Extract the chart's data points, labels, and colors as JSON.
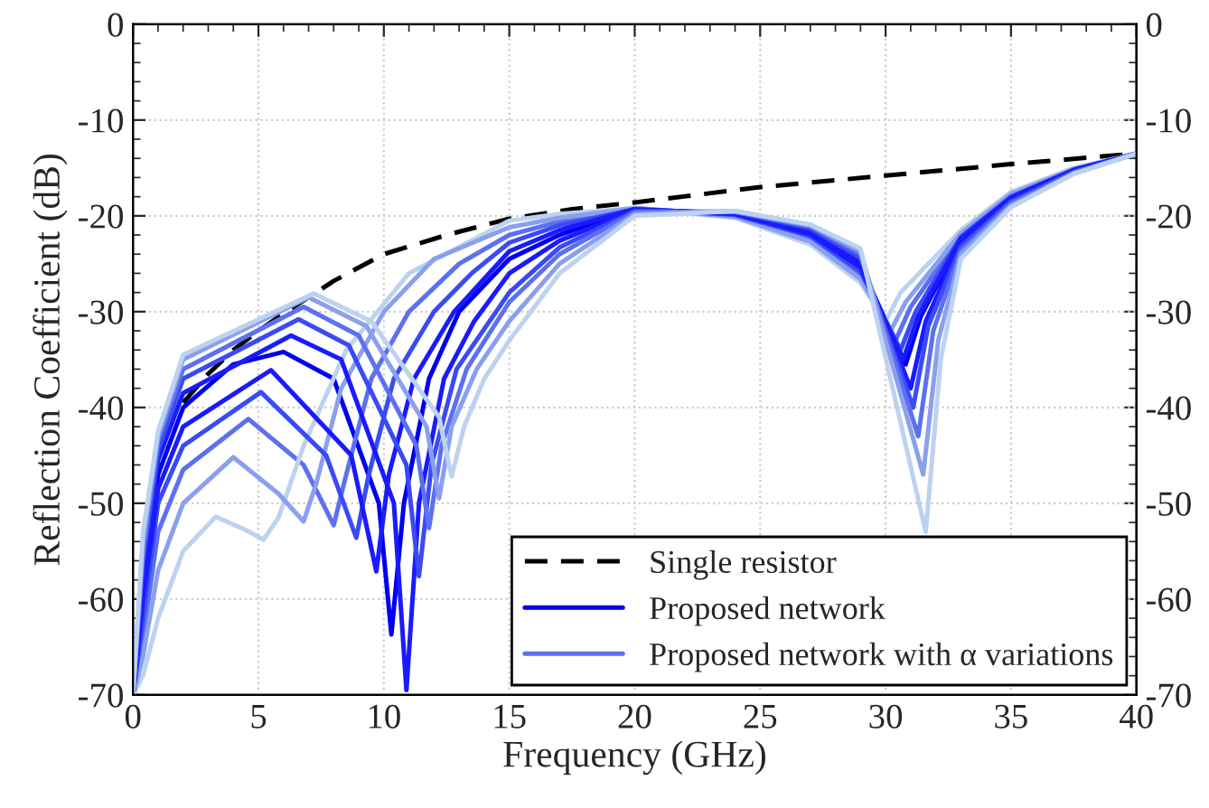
{
  "chart_data": {
    "type": "line",
    "xlabel": "Frequency (GHz)",
    "ylabel": "Reflection Coefficient (dB)",
    "xlim": [
      0,
      40
    ],
    "xticks": [
      0,
      5,
      10,
      15,
      20,
      25,
      30,
      35,
      40
    ],
    "ylim": [
      -70,
      0
    ],
    "yticks": [
      -70,
      -60,
      -50,
      -40,
      -30,
      -20,
      -10,
      0
    ],
    "y2lim": [
      -70,
      0
    ],
    "y2ticks": [
      -70,
      -60,
      -50,
      -40,
      -30,
      -20,
      -10,
      0
    ],
    "grid": true,
    "legend": "bottom right",
    "series": [
      {
        "name": "Single resistor",
        "color": "#000000",
        "line_style": "dashed",
        "x": [
          2,
          3,
          4,
          5,
          6,
          8,
          10,
          12.5,
          15,
          17.5,
          20,
          25,
          30,
          35,
          40
        ],
        "values": [
          -39.5,
          -36.5,
          -34,
          -32,
          -30.2,
          -26.8,
          -24,
          -22,
          -20.3,
          -19.3,
          -18.6,
          -17,
          -15.8,
          -14.6,
          -13.5
        ]
      },
      {
        "name": "Proposed network",
        "color": "#0000ee",
        "x": [
          0,
          0.4,
          1,
          2,
          4,
          6,
          8,
          9.8,
          10.3,
          10.8,
          11.8,
          13,
          15,
          17,
          20,
          24,
          27,
          29,
          30.8,
          31.4,
          33,
          35,
          37.5,
          40
        ],
        "values": [
          -70,
          -58,
          -47,
          -40,
          -35.5,
          -34.2,
          -37,
          -50,
          -63.7,
          -50,
          -37,
          -30,
          -24.5,
          -22,
          -19.3,
          -19.8,
          -21.7,
          -25.2,
          -35.5,
          -30.5,
          -22.5,
          -18.2,
          -15.3,
          -13.5
        ]
      },
      {
        "name": "Proposed network with α variations",
        "color": "#5c70f0",
        "x": [
          0,
          0.4,
          1,
          2,
          4.6,
          6.8,
          8.0,
          8.5,
          9.5,
          11,
          13,
          15,
          17,
          20,
          24,
          27,
          29,
          30.4,
          31.0,
          33,
          35,
          37.5,
          40
        ],
        "values": [
          -70,
          -64,
          -53,
          -46.5,
          -41.2,
          -46,
          -52.3,
          -47,
          -37,
          -30,
          -25,
          -22,
          -20.6,
          -19.2,
          -20,
          -22.4,
          -26.2,
          -33,
          -29.5,
          -22,
          -17.8,
          -15.1,
          -13.5
        ]
      },
      {
        "color": "#bdd2f0",
        "x": [
          0,
          0.4,
          1,
          2,
          3.3,
          4.5,
          5.2,
          5.8,
          6.8,
          8.5,
          11,
          15,
          17,
          20,
          24,
          27,
          29,
          30.0,
          30.6,
          33,
          35,
          37.5,
          40
        ],
        "values": [
          -70,
          -68,
          -62,
          -55,
          -51.4,
          -52.8,
          -53.8,
          -51.5,
          -44,
          -34,
          -26,
          -20.5,
          -19.8,
          -19.2,
          -20.2,
          -23,
          -27,
          -31,
          -28,
          -21.5,
          -17.5,
          -15,
          -13.5
        ]
      },
      {
        "color": "#8aa0ee",
        "x": [
          0,
          0.4,
          1,
          2,
          4.0,
          5.8,
          6.8,
          7.3,
          8.3,
          10,
          12,
          15,
          17,
          20,
          24,
          27,
          29,
          30.2,
          30.8,
          33,
          35,
          37.5,
          40
        ],
        "values": [
          -70,
          -66,
          -57,
          -50,
          -45.2,
          -49,
          -51.9,
          -48,
          -38,
          -30,
          -24.5,
          -21.2,
          -20.2,
          -19.2,
          -20.1,
          -22.7,
          -26.6,
          -32,
          -29,
          -21.8,
          -17.7,
          -15.1,
          -13.5
        ]
      },
      {
        "color": "#3a4af5",
        "x": [
          0,
          0.4,
          1,
          2,
          5.1,
          7.7,
          8.9,
          9.4,
          10.4,
          12,
          13.5,
          15,
          17,
          20,
          24,
          27,
          29,
          30.6,
          31.2,
          33,
          35,
          37.5,
          40
        ],
        "values": [
          -70,
          -62,
          -50,
          -44,
          -38.4,
          -45,
          -53.6,
          -47,
          -37,
          -30,
          -26,
          -22.8,
          -21,
          -19.3,
          -19.9,
          -22.1,
          -25.8,
          -34,
          -30,
          -22.2,
          -18,
          -15.2,
          -13.5
        ]
      },
      {
        "color": "#1a1aff",
        "x": [
          0,
          0.4,
          1,
          2,
          5.5,
          8.7,
          9.7,
          10.2,
          11.2,
          12.8,
          15,
          17,
          20,
          24,
          27,
          29,
          30.7,
          31.3,
          33,
          35,
          37.5,
          40
        ],
        "values": [
          -70,
          -60,
          -48.5,
          -42,
          -36.1,
          -45,
          -57.1,
          -47,
          -37,
          -30,
          -23.7,
          -21.5,
          -19.3,
          -19.8,
          -21.9,
          -25.4,
          -35,
          -30.5,
          -22.4,
          -18.1,
          -15.2,
          -13.5
        ]
      },
      {
        "color": "#1a1aff",
        "x": [
          0,
          0.4,
          1,
          2,
          6.3,
          8.3,
          10.4,
          10.9,
          11.4,
          12.4,
          13.6,
          15,
          17,
          20,
          24,
          27,
          29,
          31.0,
          31.6,
          33,
          35,
          37.5,
          40
        ],
        "values": [
          -70,
          -57,
          -45.5,
          -38.5,
          -32.5,
          -35,
          -50,
          -69.5,
          -50,
          -37,
          -31,
          -26,
          -22.6,
          -19.4,
          -19.7,
          -21.5,
          -24.8,
          -38,
          -31,
          -22.8,
          -18.3,
          -15.3,
          -13.5
        ]
      },
      {
        "color": "#3a4af5",
        "x": [
          0,
          0.4,
          1,
          2,
          6.6,
          8.6,
          10.9,
          11.4,
          11.9,
          12.9,
          15,
          17,
          20,
          24,
          27,
          29,
          31.1,
          31.7,
          33,
          35,
          37.5,
          40
        ],
        "values": [
          -70,
          -56,
          -44.5,
          -37,
          -30.8,
          -33.5,
          -46,
          -57.6,
          -46,
          -36,
          -28,
          -23.3,
          -19.5,
          -19.6,
          -21.3,
          -24.4,
          -40,
          -31.5,
          -23.2,
          -18.5,
          -15.4,
          -13.5
        ]
      },
      {
        "color": "#5c70f0",
        "x": [
          0,
          0.4,
          1,
          2,
          6.8,
          9,
          11.3,
          11.8,
          12.3,
          13.3,
          15,
          17,
          20,
          24,
          27,
          29,
          31.3,
          31.9,
          33,
          35,
          37.5,
          40
        ],
        "values": [
          -70,
          -55,
          -43.5,
          -36,
          -29.5,
          -32.5,
          -44,
          -52.6,
          -44,
          -36,
          -29,
          -24,
          -19.6,
          -19.6,
          -21.1,
          -24,
          -43,
          -32,
          -23.6,
          -18.7,
          -15.5,
          -13.5
        ]
      },
      {
        "color": "#8aa0ee",
        "x": [
          0,
          0.4,
          1,
          2,
          7,
          9.3,
          11.7,
          12.2,
          12.7,
          13.7,
          15,
          17,
          20,
          24,
          27,
          29,
          31.5,
          32.1,
          33,
          35,
          37.5,
          40
        ],
        "values": [
          -70,
          -54,
          -43,
          -35,
          -28.5,
          -31.5,
          -42,
          -49.5,
          -42,
          -36,
          -31,
          -25,
          -19.8,
          -19.5,
          -21,
          -23.7,
          -47,
          -33,
          -24,
          -18.9,
          -15.6,
          -13.5
        ]
      },
      {
        "color": "#bdd2f0",
        "x": [
          0,
          0.4,
          1,
          2,
          7.2,
          9.5,
          12.2,
          12.7,
          13.2,
          14,
          15,
          17,
          20,
          24,
          27,
          29,
          31.6,
          32.2,
          33,
          35,
          37.5,
          40
        ],
        "values": [
          -70,
          -53,
          -42.5,
          -34.5,
          -28.1,
          -31,
          -41,
          -47.2,
          -42,
          -37,
          -33,
          -26,
          -20,
          -19.5,
          -20.9,
          -23.4,
          -53,
          -35,
          -24.5,
          -19.1,
          -15.6,
          -13.5
        ]
      }
    ]
  }
}
